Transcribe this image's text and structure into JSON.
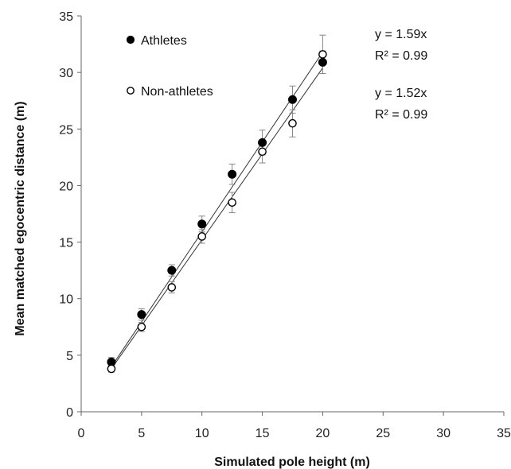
{
  "chart_data": {
    "type": "scatter",
    "xlabel": "Simulated pole height (m)",
    "ylabel": "Mean matched egocentric distance (m)",
    "xlim": [
      0,
      35
    ],
    "ylim": [
      0,
      35
    ],
    "xticks": [
      0,
      5,
      10,
      15,
      20,
      25,
      30,
      35
    ],
    "yticks": [
      0,
      5,
      10,
      15,
      20,
      25,
      30,
      35
    ],
    "grid": false,
    "legend_position": "top-left",
    "series": [
      {
        "name": "Athletes",
        "marker": "filled-circle",
        "color": "#000000",
        "x": [
          2.5,
          5,
          7.5,
          10,
          12.5,
          15,
          17.5,
          20
        ],
        "y": [
          4.4,
          8.6,
          12.5,
          16.6,
          21.0,
          23.8,
          27.6,
          30.9
        ],
        "error": [
          0.4,
          0.5,
          0.5,
          0.7,
          0.9,
          1.1,
          1.2,
          1.0
        ],
        "fit_slope": 1.59,
        "equation": "y = 1.59x",
        "r2": "R² = 0.99"
      },
      {
        "name": "Non-athletes",
        "marker": "open-circle",
        "color": "#000000",
        "x": [
          2.5,
          5,
          7.5,
          10,
          12.5,
          15,
          17.5,
          20
        ],
        "y": [
          3.8,
          7.5,
          11.0,
          15.5,
          18.5,
          23.0,
          25.5,
          31.6
        ],
        "error": [
          0.3,
          0.4,
          0.5,
          0.6,
          0.9,
          1.0,
          1.2,
          1.7
        ],
        "fit_slope": 1.52,
        "equation": "y = 1.52x",
        "r2": "R² = 0.99"
      }
    ]
  }
}
